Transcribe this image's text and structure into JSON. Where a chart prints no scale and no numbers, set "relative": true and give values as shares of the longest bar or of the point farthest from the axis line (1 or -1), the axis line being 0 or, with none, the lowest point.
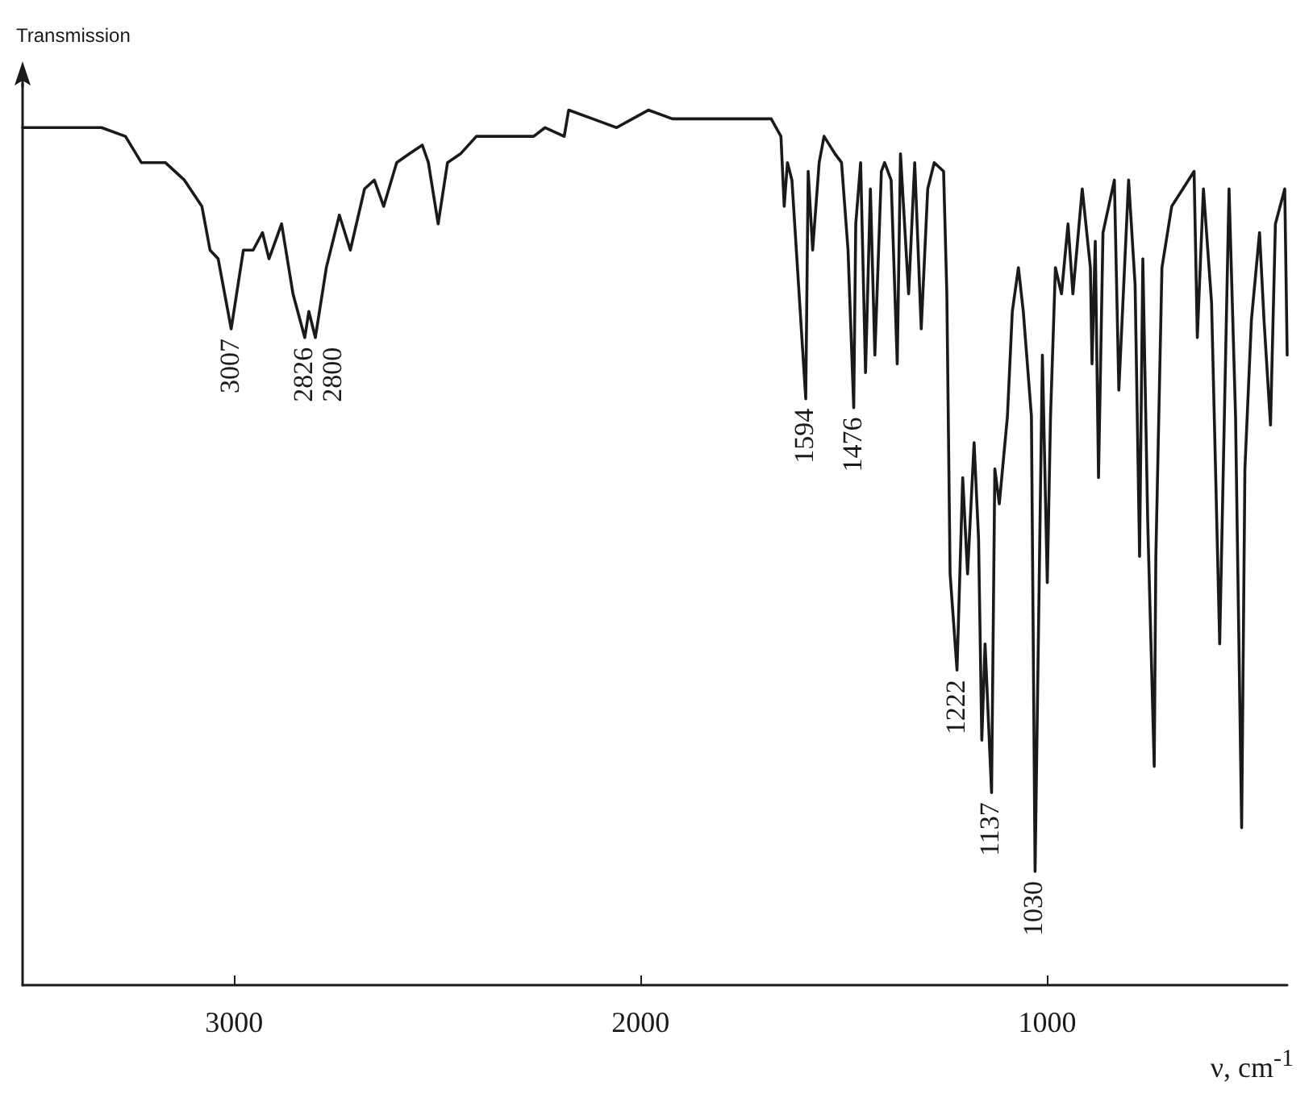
{
  "chart_data": {
    "type": "line",
    "relative": true,
    "ylabel": "Transmission",
    "xlabel": "ν, cm$^{-1}$",
    "xlim": [
      3520,
      410
    ],
    "xticks": [
      3000,
      2000,
      1000
    ],
    "grid": false,
    "marker": "none",
    "line_style": "solid",
    "x": [
      3520,
      3326,
      3267,
      3228,
      3169,
      3122,
      3079,
      3059,
      3039,
      3007,
      2977,
      2953,
      2930,
      2914,
      2883,
      2855,
      2826,
      2816,
      2800,
      2773,
      2741,
      2714,
      2679,
      2655,
      2632,
      2600,
      2569,
      2537,
      2522,
      2498,
      2475,
      2443,
      2404,
      2333,
      2263,
      2235,
      2188,
      2177,
      2118,
      2059,
      2020,
      1981,
      1922,
      1824,
      1765,
      1679,
      1655,
      1647,
      1639,
      1628,
      1594,
      1588,
      1577,
      1561,
      1549,
      1522,
      1506,
      1490,
      1476,
      1471,
      1459,
      1447,
      1435,
      1424,
      1408,
      1400,
      1384,
      1369,
      1361,
      1341,
      1326,
      1310,
      1294,
      1278,
      1255,
      1247,
      1239,
      1222,
      1208,
      1196,
      1180,
      1169,
      1161,
      1153,
      1137,
      1129,
      1118,
      1098,
      1086,
      1071,
      1059,
      1039,
      1030,
      1012,
      1000,
      992,
      980,
      965,
      949,
      937,
      914,
      894,
      890,
      882,
      874,
      863,
      835,
      824,
      800,
      784,
      773,
      765,
      753,
      737,
      733,
      718,
      694,
      639,
      631,
      616,
      596,
      576,
      553,
      537,
      522,
      514,
      498,
      478,
      467,
      451,
      439,
      416,
      410
    ],
    "series": [
      {
        "color": "#1a1a1a",
        "values": [
          0.98,
          0.98,
          0.97,
          0.94,
          0.94,
          0.92,
          0.89,
          0.84,
          0.83,
          0.75,
          0.84,
          0.84,
          0.86,
          0.83,
          0.87,
          0.79,
          0.74,
          0.77,
          0.74,
          0.82,
          0.88,
          0.84,
          0.91,
          0.92,
          0.89,
          0.94,
          0.95,
          0.96,
          0.94,
          0.87,
          0.94,
          0.95,
          0.97,
          0.97,
          0.97,
          0.98,
          0.97,
          1.0,
          0.99,
          0.98,
          0.99,
          1.0,
          0.99,
          0.99,
          0.99,
          0.99,
          0.97,
          0.89,
          0.94,
          0.92,
          0.67,
          0.93,
          0.84,
          0.94,
          0.97,
          0.95,
          0.94,
          0.84,
          0.66,
          0.87,
          0.94,
          0.7,
          0.91,
          0.72,
          0.93,
          0.94,
          0.92,
          0.71,
          0.95,
          0.79,
          0.94,
          0.75,
          0.91,
          0.94,
          0.93,
          0.79,
          0.47,
          0.36,
          0.58,
          0.47,
          0.62,
          0.51,
          0.28,
          0.39,
          0.22,
          0.59,
          0.55,
          0.65,
          0.77,
          0.82,
          0.77,
          0.65,
          0.13,
          0.72,
          0.46,
          0.65,
          0.82,
          0.79,
          0.87,
          0.79,
          0.91,
          0.82,
          0.71,
          0.85,
          0.58,
          0.86,
          0.92,
          0.68,
          0.92,
          0.8,
          0.49,
          0.83,
          0.53,
          0.25,
          0.49,
          0.82,
          0.89,
          0.93,
          0.74,
          0.91,
          0.78,
          0.39,
          0.91,
          0.65,
          0.18,
          0.59,
          0.76,
          0.86,
          0.76,
          0.64,
          0.87,
          0.91,
          0.72
        ]
      }
    ],
    "annotations": [
      {
        "text": "3007",
        "x": 3007,
        "y": 0.75
      },
      {
        "text": "2826",
        "x": 2826,
        "y": 0.74
      },
      {
        "text": "2800",
        "x": 2800,
        "y": 0.74
      },
      {
        "text": "1594",
        "x": 1594,
        "y": 0.67
      },
      {
        "text": "1476",
        "x": 1476,
        "y": 0.66
      },
      {
        "text": "1222",
        "x": 1222,
        "y": 0.36
      },
      {
        "text": "1137",
        "x": 1137,
        "y": 0.22
      },
      {
        "text": "1030",
        "x": 1030,
        "y": 0.13
      }
    ]
  }
}
